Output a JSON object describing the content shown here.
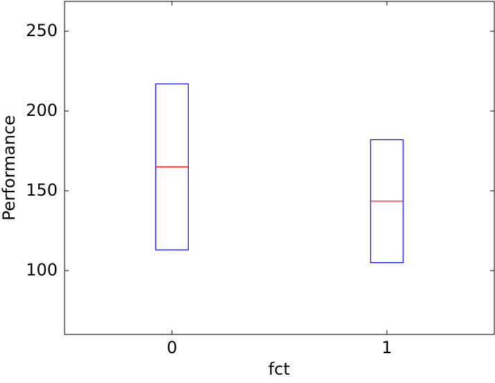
{
  "chart_data": {
    "type": "box",
    "xlabel": "fct",
    "ylabel": "Performance",
    "categories": [
      "0",
      "1"
    ],
    "boxes": [
      {
        "q1": 113,
        "median": 165,
        "q3": 217
      },
      {
        "q1": 105,
        "median": 143.5,
        "q3": 182
      }
    ],
    "box_color": "#0000ff",
    "median_color": "#ff0000",
    "ylim": [
      60,
      268.7
    ],
    "yticks": [
      100,
      150,
      200,
      250
    ]
  }
}
